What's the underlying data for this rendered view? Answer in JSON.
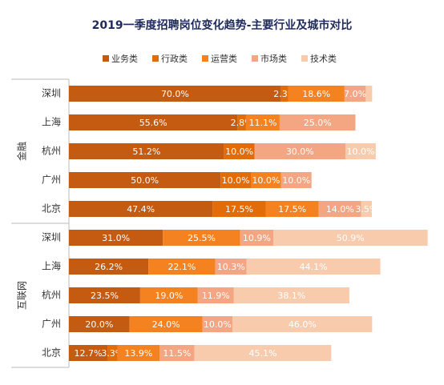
{
  "chart_data": {
    "type": "stacked-bar-horizontal",
    "title": "2019一季度招聘岗位变化趋势-主要行业及城市对比",
    "categories": [
      "深圳",
      "上海",
      "杭州",
      "广州",
      "北京",
      "深圳",
      "上海",
      "杭州",
      "广州",
      "北京"
    ],
    "groups": [
      {
        "label": "金融",
        "size": 5
      },
      {
        "label": "互联网",
        "size": 5
      }
    ],
    "xlim": [
      0,
      120
    ],
    "series": [
      {
        "name": "业务类",
        "color": "#c55a11",
        "values": [
          70.0,
          55.6,
          51.2,
          50.0,
          47.4,
          31.0,
          26.2,
          23.5,
          20.0,
          12.7
        ],
        "value_labels": [
          "70.0%",
          "55.6%",
          "51.2%",
          "50.0%",
          "47.4%",
          "31.0%",
          "26.2%",
          "23.5%",
          "20.0%",
          "12.7%"
        ]
      },
      {
        "name": "行政类",
        "color": "#e26b0a",
        "values": [
          2.3,
          2.8,
          10.0,
          10.0,
          17.5,
          null,
          null,
          null,
          null,
          3.3
        ],
        "value_labels": [
          "2.3%",
          "2.8%",
          "10.0%",
          "10.0%",
          "17.5%",
          null,
          null,
          null,
          null,
          "3.3%"
        ]
      },
      {
        "name": "运营类",
        "color": "#f58220",
        "values": [
          18.6,
          11.1,
          null,
          10.0,
          17.5,
          25.5,
          22.1,
          19.0,
          24.0,
          13.9
        ],
        "value_labels": [
          "18.6%",
          "11.1%",
          null,
          "10.0%",
          "17.5%",
          "25.5%",
          "22.1%",
          "19.0%",
          "24.0%",
          "13.9%"
        ]
      },
      {
        "name": "市场类",
        "color": "#f4a582",
        "values": [
          7.0,
          25.0,
          30.0,
          10.0,
          14.0,
          10.9,
          10.3,
          11.9,
          10.0,
          11.5
        ],
        "value_labels": [
          "7.0%",
          "25.0%",
          "30.0%",
          "10.0%",
          "14.0%",
          "10.9%",
          "10.3%",
          "11.9%",
          "10.0%",
          "11.5%"
        ]
      },
      {
        "name": "技术类",
        "color": "#f8cbad",
        "values": [
          2.1,
          null,
          10.0,
          null,
          3.5,
          50.9,
          44.1,
          38.1,
          46.0,
          45.1
        ],
        "value_labels": [
          null,
          null,
          "10.0%",
          null,
          "3.5%",
          "50.9%",
          "44.1%",
          "38.1%",
          "46.0%",
          "45.1%"
        ]
      }
    ]
  }
}
